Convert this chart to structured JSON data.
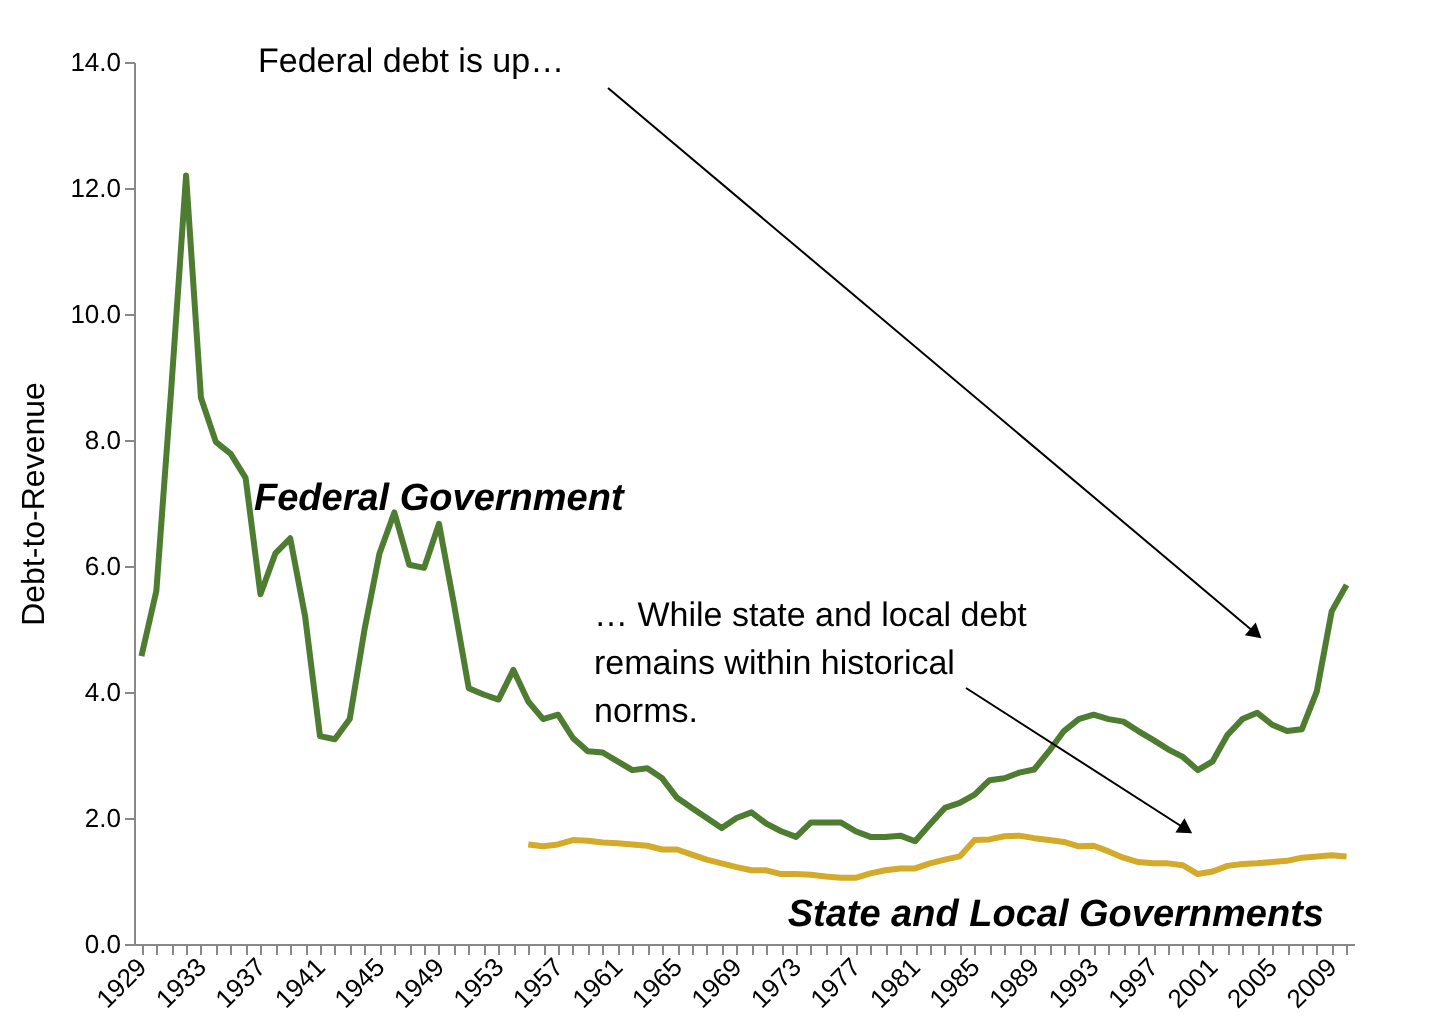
{
  "chart_data": {
    "type": "line",
    "ylabel": "Debt-to-Revenue",
    "categories": [
      "1929",
      null,
      null,
      null,
      "1933",
      null,
      null,
      null,
      "1937",
      null,
      null,
      null,
      "1941",
      null,
      null,
      null,
      "1945",
      null,
      null,
      null,
      "1949",
      null,
      null,
      null,
      "1953",
      null,
      null,
      null,
      "1957",
      null,
      null,
      null,
      "1961",
      null,
      null,
      null,
      "1965",
      null,
      null,
      null,
      "1969",
      null,
      null,
      null,
      "1973",
      null,
      null,
      null,
      "1977",
      null,
      null,
      null,
      "1981",
      null,
      null,
      null,
      "1985",
      null,
      null,
      null,
      "1989",
      null,
      null,
      null,
      "1993",
      null,
      null,
      null,
      "1997",
      null,
      null,
      null,
      "2001",
      null,
      null,
      null,
      "2005",
      null,
      null,
      null,
      "2009",
      null
    ],
    "series": [
      {
        "name": "Federal Government",
        "color": "#4e7d32",
        "values": [
          4.57,
          5.6,
          8.8,
          12.2,
          8.67,
          7.97,
          7.78,
          7.4,
          5.55,
          6.2,
          6.44,
          5.2,
          3.3,
          3.25,
          3.57,
          5.0,
          6.2,
          6.85,
          6.02,
          5.97,
          6.67,
          5.4,
          4.06,
          3.96,
          3.88,
          4.35,
          3.85,
          3.57,
          3.64,
          3.27,
          3.06,
          3.04,
          2.9,
          2.76,
          2.79,
          2.63,
          2.32,
          2.16,
          2.0,
          1.84,
          2.0,
          2.09,
          1.91,
          1.79,
          1.7,
          1.93,
          1.93,
          1.93,
          1.79,
          1.7,
          1.7,
          1.72,
          1.63,
          1.9,
          2.16,
          2.24,
          2.37,
          2.6,
          2.63,
          2.72,
          2.77,
          3.06,
          3.38,
          3.57,
          3.64,
          3.57,
          3.53,
          3.38,
          3.24,
          3.09,
          2.97,
          2.76,
          2.9,
          3.32,
          3.57,
          3.67,
          3.48,
          3.38,
          3.41,
          4.01,
          5.28,
          5.7
        ]
      },
      {
        "name": "State and Local Governments",
        "color": "#d4aa2a",
        "values": [
          null,
          null,
          null,
          null,
          null,
          null,
          null,
          null,
          null,
          null,
          null,
          null,
          null,
          null,
          null,
          null,
          null,
          null,
          null,
          null,
          null,
          null,
          null,
          null,
          null,
          null,
          1.58,
          1.55,
          1.58,
          1.65,
          1.64,
          1.61,
          1.6,
          1.58,
          1.56,
          1.5,
          1.5,
          1.42,
          1.34,
          1.28,
          1.22,
          1.17,
          1.17,
          1.11,
          1.11,
          1.1,
          1.07,
          1.05,
          1.05,
          1.12,
          1.17,
          1.2,
          1.2,
          1.28,
          1.34,
          1.39,
          1.65,
          1.66,
          1.71,
          1.72,
          1.68,
          1.65,
          1.62,
          1.55,
          1.56,
          1.47,
          1.37,
          1.3,
          1.28,
          1.28,
          1.25,
          1.11,
          1.15,
          1.24,
          1.27,
          1.28,
          1.3,
          1.32,
          1.37,
          1.39,
          1.41,
          1.39
        ]
      }
    ],
    "ylim": [
      0,
      14
    ],
    "yticks": [
      {
        "value": 0,
        "label": "0.0"
      },
      {
        "value": 2,
        "label": "2.0"
      },
      {
        "value": 4,
        "label": "4.0"
      },
      {
        "value": 6,
        "label": "6.0"
      },
      {
        "value": 8,
        "label": "8.0"
      },
      {
        "value": 10,
        "label": "10.0"
      },
      {
        "value": 12,
        "label": "12.0"
      },
      {
        "value": 14,
        "label": "14.0"
      }
    ],
    "annotations": [
      "Federal debt is up…",
      "… While state and local debt remains within historical norms."
    ],
    "grid": false,
    "legend": false,
    "marker": "none",
    "line_style": "solid"
  }
}
